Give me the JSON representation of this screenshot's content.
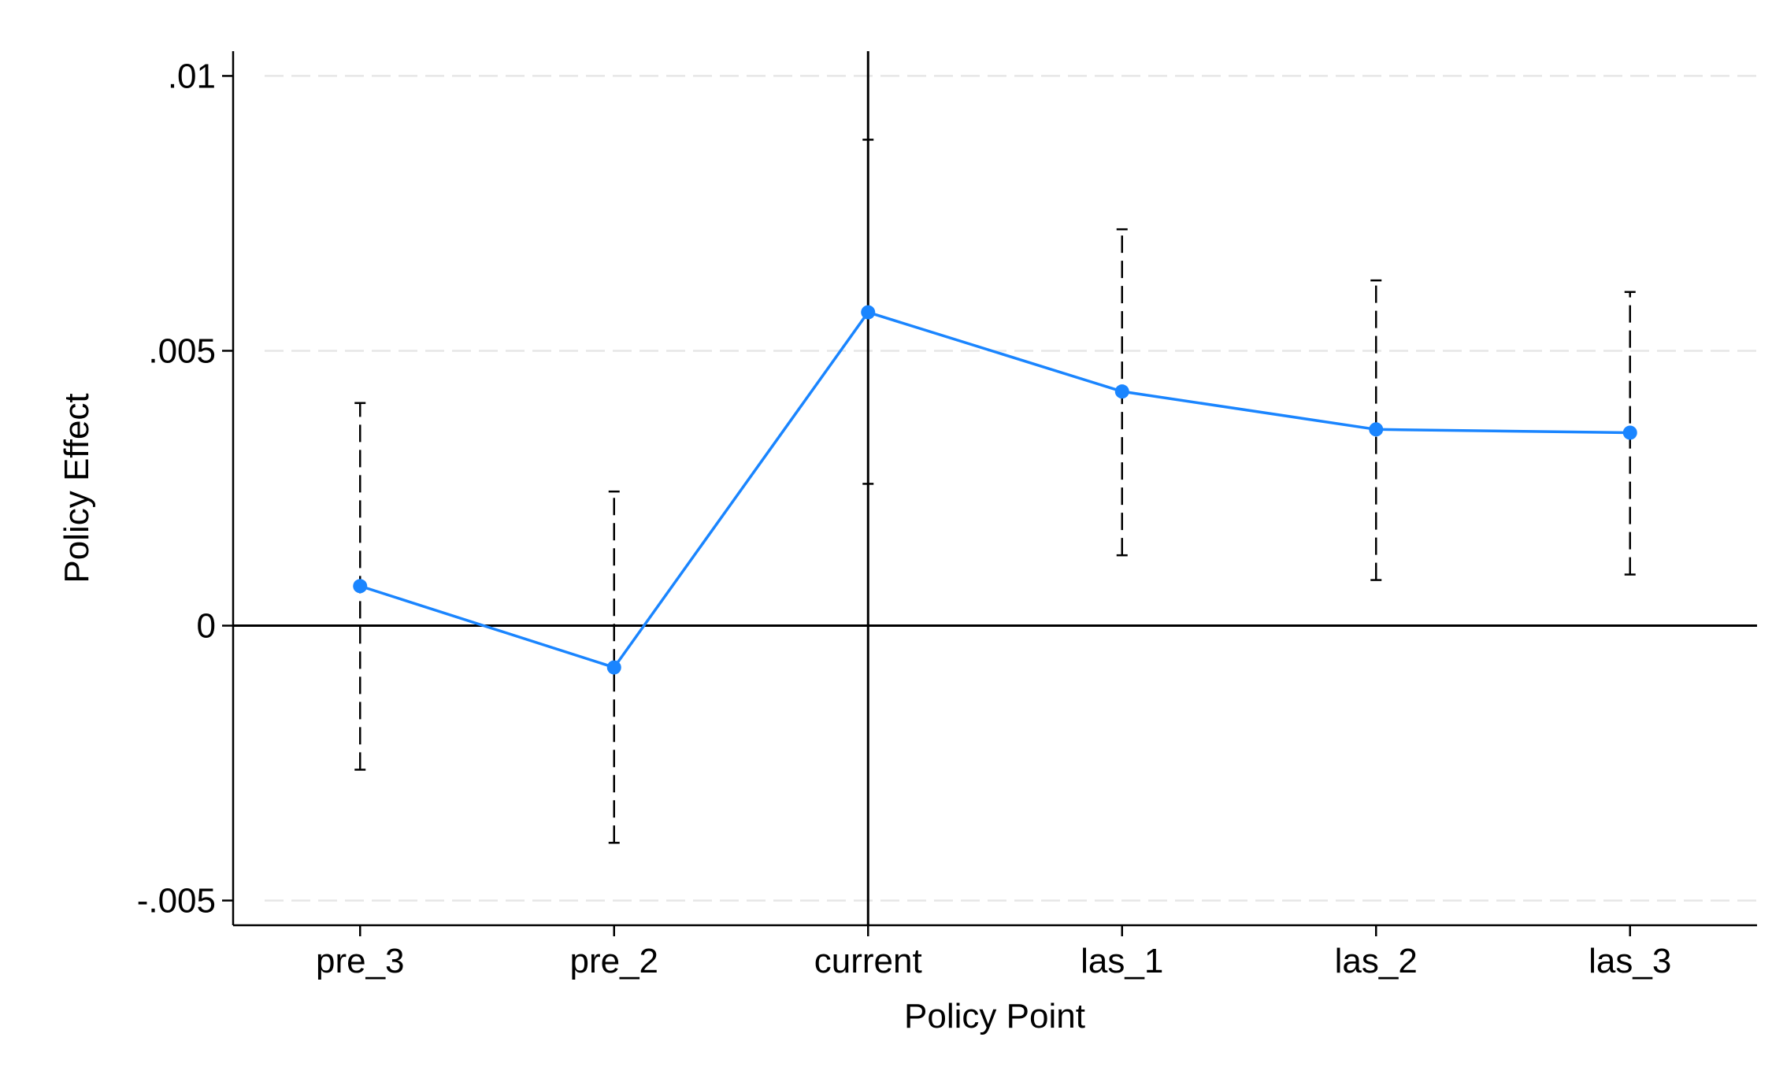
{
  "chart_data": {
    "type": "line",
    "x_label": "Policy Point",
    "y_label": "Policy Effect",
    "categories": [
      "pre_3",
      "pre_2",
      "current",
      "las_1",
      "las_2",
      "las_3"
    ],
    "series": [
      {
        "color": "#1a85ff",
        "values": [
          0.00072,
          -0.00076,
          0.0057,
          0.00426,
          0.00357,
          0.00351
        ],
        "ci_low": [
          -0.00262,
          -0.00395,
          0.00258,
          0.00128,
          0.00083,
          0.00093
        ],
        "ci_high": [
          0.00405,
          0.00244,
          0.00884,
          0.00721,
          0.00628,
          0.00607
        ]
      }
    ],
    "ylim": [
      -0.00545,
      0.01045
    ],
    "yticks": [
      {
        "value": -0.005,
        "label": "-.005"
      },
      0,
      {
        "value": 0.005,
        "label": ".005"
      },
      {
        "value": 0.01,
        "label": ".01"
      }
    ],
    "grid": true,
    "reference_lines": {
      "x": "current",
      "y": 0
    }
  }
}
